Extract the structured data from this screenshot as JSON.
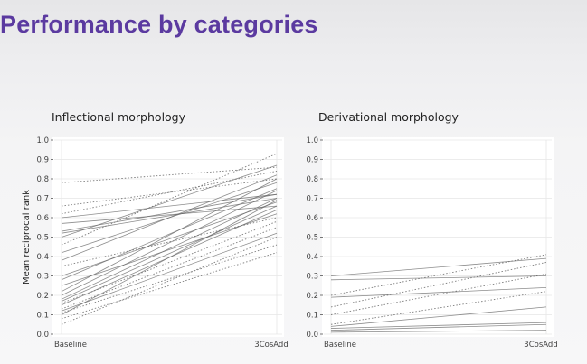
{
  "slide": {
    "title": "Performance by categories"
  },
  "colors": {
    "title": "#5b3aa0",
    "line": "#666666",
    "grid": "#e6e6e6",
    "panel": "#ffffff"
  },
  "chart_data": [
    {
      "type": "line",
      "title": "Inflectional morphology",
      "categories": [
        "Baseline",
        "3CosAdd"
      ],
      "ylabel": "Mean reciprocal rank",
      "ylim": [
        0,
        1
      ],
      "yticks": [
        "0.0",
        "0.1",
        "0.2",
        "0.3",
        "0.4",
        "0.5",
        "0.6",
        "0.7",
        "0.8",
        "0.9",
        "1.0"
      ],
      "series": [
        {
          "values": [
            0.78,
            0.86
          ],
          "style": "dotted"
        },
        {
          "values": [
            0.66,
            0.8
          ],
          "style": "dotted"
        },
        {
          "values": [
            0.62,
            0.84
          ],
          "style": "dotted"
        },
        {
          "values": [
            0.6,
            0.72
          ],
          "style": "solid"
        },
        {
          "values": [
            0.57,
            0.66
          ],
          "style": "solid"
        },
        {
          "values": [
            0.53,
            0.72
          ],
          "style": "solid"
        },
        {
          "values": [
            0.52,
            0.7
          ],
          "style": "solid"
        },
        {
          "values": [
            0.5,
            0.87
          ],
          "style": "solid"
        },
        {
          "values": [
            0.46,
            0.93
          ],
          "style": "dotted"
        },
        {
          "values": [
            0.42,
            0.78
          ],
          "style": "solid"
        },
        {
          "values": [
            0.38,
            0.82
          ],
          "style": "solid"
        },
        {
          "values": [
            0.35,
            0.6
          ],
          "style": "dotted"
        },
        {
          "values": [
            0.3,
            0.68
          ],
          "style": "solid"
        },
        {
          "values": [
            0.28,
            0.75
          ],
          "style": "solid"
        },
        {
          "values": [
            0.25,
            0.62
          ],
          "style": "solid"
        },
        {
          "values": [
            0.22,
            0.8
          ],
          "style": "solid"
        },
        {
          "values": [
            0.2,
            0.74
          ],
          "style": "solid"
        },
        {
          "values": [
            0.18,
            0.7
          ],
          "style": "solid"
        },
        {
          "values": [
            0.17,
            0.66
          ],
          "style": "solid"
        },
        {
          "values": [
            0.16,
            0.58
          ],
          "style": "dotted"
        },
        {
          "values": [
            0.15,
            0.64
          ],
          "style": "solid"
        },
        {
          "values": [
            0.13,
            0.55
          ],
          "style": "dotted"
        },
        {
          "values": [
            0.12,
            0.52
          ],
          "style": "solid"
        },
        {
          "values": [
            0.11,
            0.46
          ],
          "style": "dotted"
        },
        {
          "values": [
            0.1,
            0.69
          ],
          "style": "solid"
        },
        {
          "values": [
            0.08,
            0.42
          ],
          "style": "dotted"
        },
        {
          "values": [
            0.05,
            0.5
          ],
          "style": "dotted"
        }
      ]
    },
    {
      "type": "line",
      "title": "Derivational morphology",
      "categories": [
        "Baseline",
        "3CosAdd"
      ],
      "ylim": [
        0,
        1
      ],
      "yticks": [
        "0.0",
        "0.1",
        "0.2",
        "0.3",
        "0.4",
        "0.5",
        "0.6",
        "0.7",
        "0.8",
        "0.9",
        "1.0"
      ],
      "series": [
        {
          "values": [
            0.3,
            0.39
          ],
          "style": "solid"
        },
        {
          "values": [
            0.28,
            0.3
          ],
          "style": "solid"
        },
        {
          "values": [
            0.2,
            0.41
          ],
          "style": "dotted"
        },
        {
          "values": [
            0.19,
            0.24
          ],
          "style": "solid"
        },
        {
          "values": [
            0.14,
            0.37
          ],
          "style": "dotted"
        },
        {
          "values": [
            0.1,
            0.31
          ],
          "style": "dotted"
        },
        {
          "values": [
            0.05,
            0.22
          ],
          "style": "dotted"
        },
        {
          "values": [
            0.04,
            0.14
          ],
          "style": "solid"
        },
        {
          "values": [
            0.03,
            0.06
          ],
          "style": "solid"
        },
        {
          "values": [
            0.02,
            0.05
          ],
          "style": "solid"
        },
        {
          "values": [
            0.01,
            0.02
          ],
          "style": "solid"
        }
      ]
    }
  ]
}
